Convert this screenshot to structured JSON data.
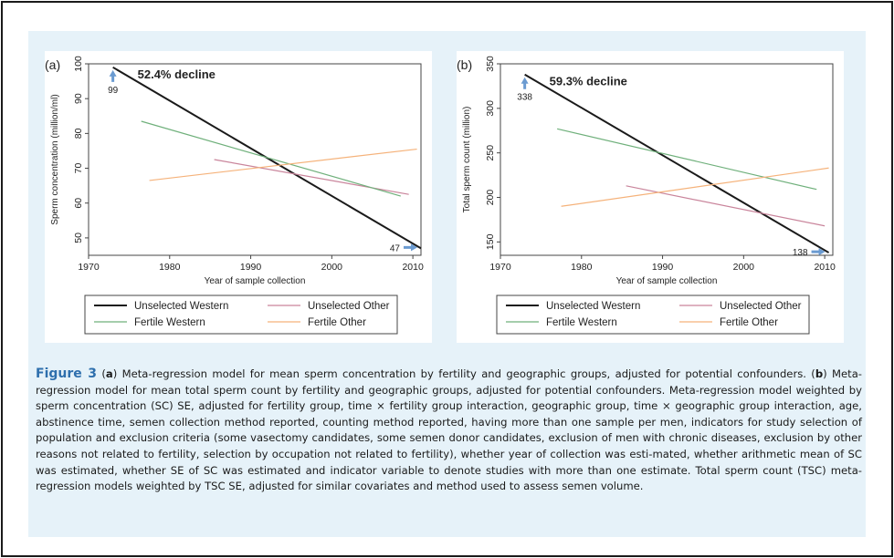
{
  "colors": {
    "unselected_western": "#1a1a1a",
    "unselected_other": "#c9849b",
    "fertile_western": "#6fb07b",
    "fertile_other": "#f5b27a",
    "figure_background": "#e6f2f9",
    "arrow": "#6b9bd1",
    "caption_label": "#2e6fad"
  },
  "legend": {
    "unselected_western": "Unselected Western",
    "unselected_other": "Unselected Other",
    "fertile_western": "Fertile Western",
    "fertile_other": "Fertile Other"
  },
  "chart_data": [
    {
      "type": "line",
      "panel_label": "(a)",
      "annotation": "52.4% decline",
      "xlabel": "Year of sample collection",
      "ylabel": "Sperm concentration (million/ml)",
      "xlim": [
        1970,
        2011
      ],
      "ylim": [
        45,
        100
      ],
      "xticks": [
        "1970",
        "1980",
        "1990",
        "2000",
        "2010"
      ],
      "yticks": [
        "50",
        "60",
        "70",
        "80",
        "90",
        "100"
      ],
      "start_label": "99",
      "end_label": "47",
      "series": [
        {
          "name": "Unselected Western",
          "x": [
            1973,
            2011
          ],
          "y": [
            99,
            47
          ]
        },
        {
          "name": "Unselected Other",
          "x": [
            1985.5,
            2009.5
          ],
          "y": [
            72.5,
            62.5
          ]
        },
        {
          "name": "Fertile Western",
          "x": [
            1976.5,
            2008.5
          ],
          "y": [
            83.5,
            62
          ]
        },
        {
          "name": "Fertile Other",
          "x": [
            1977.5,
            2010.5
          ],
          "y": [
            66.5,
            75.5
          ]
        }
      ]
    },
    {
      "type": "line",
      "panel_label": "(b)",
      "annotation": "59.3% decline",
      "xlabel": "Year of sample collection",
      "ylabel": "Total sperm count (million)",
      "xlim": [
        1970,
        2011
      ],
      "ylim": [
        135,
        350
      ],
      "xticks": [
        "1970",
        "1980",
        "1990",
        "2000",
        "2010"
      ],
      "yticks": [
        "150",
        "200",
        "250",
        "300",
        "350"
      ],
      "start_label": "338",
      "end_label": "138",
      "series": [
        {
          "name": "Unselected Western",
          "x": [
            1973,
            2010.5
          ],
          "y": [
            338,
            138
          ]
        },
        {
          "name": "Unselected Other",
          "x": [
            1985.5,
            2010
          ],
          "y": [
            213,
            168
          ]
        },
        {
          "name": "Fertile Western",
          "x": [
            1977,
            2009
          ],
          "y": [
            277,
            209
          ]
        },
        {
          "name": "Fertile Other",
          "x": [
            1977.5,
            2010.5
          ],
          "y": [
            190,
            233
          ]
        }
      ]
    }
  ],
  "caption": {
    "figure_label": "Figure 3",
    "part_a": "a",
    "text_a": " Meta-regression model for mean sperm concentration by fertility and geographic groups, adjusted for potential confounders. ",
    "part_b": "b",
    "text_b": " Meta-regression model for mean total sperm count by fertility and geographic groups, adjusted for potential confounders. Meta-regression model weighted by sperm concentration (SC) SE, adjusted for fertility group, time × fertility group interaction, geographic group, time × geographic group interaction, age, abstinence time, semen collection method reported, counting method reported, having more than one sample per men, indicators for study selection of population and exclusion criteria (some vasectomy candidates, some semen donor candidates, exclusion of men with chronic diseases, exclusion by other reasons not related to fertility, selection by occupation not related to fertility), whether year of collection was esti-mated, whether arithmetic mean of SC was estimated, whether SE of SC was estimated and indicator variable to denote studies with more than one estimate. Total sperm count (TSC) meta-regression models weighted by TSC SE, adjusted for similar covariates and method used to assess semen volume."
  }
}
